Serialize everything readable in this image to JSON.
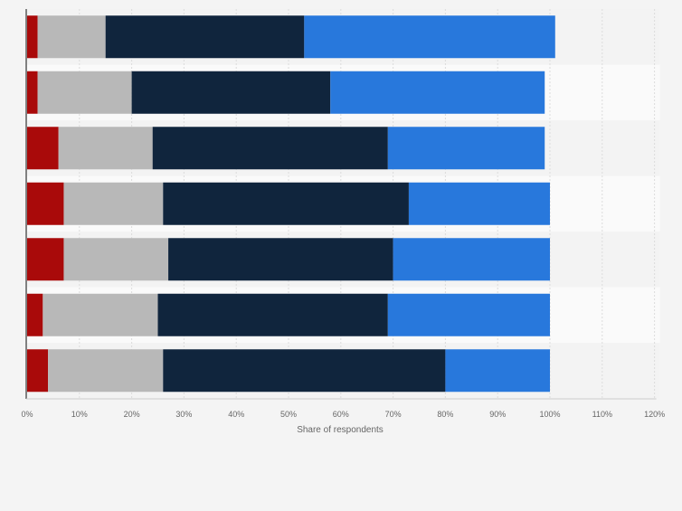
{
  "chart_data": {
    "type": "bar",
    "orientation": "horizontal",
    "stacked": true,
    "title": "",
    "xlabel": "Share of respondents",
    "ylabel": "",
    "xlim": [
      0,
      120
    ],
    "x_ticks": [
      "0%",
      "10%",
      "20%",
      "30%",
      "40%",
      "50%",
      "60%",
      "70%",
      "80%",
      "90%",
      "100%",
      "110%",
      "120%"
    ],
    "categories": [
      "",
      "",
      "",
      "",
      "",
      "",
      ""
    ],
    "series": [
      {
        "name": "",
        "color": "#a90a0a",
        "values": [
          2,
          2,
          6,
          7,
          7,
          3,
          4
        ]
      },
      {
        "name": "",
        "color": "#b8b8b8",
        "values": [
          13,
          18,
          18,
          19,
          20,
          22,
          22
        ]
      },
      {
        "name": "",
        "color": "#10253d",
        "values": [
          38,
          38,
          45,
          47,
          43,
          44,
          54
        ]
      },
      {
        "name": "",
        "color": "#2878dc",
        "values": [
          48,
          41,
          30,
          27,
          30,
          31,
          20
        ]
      }
    ],
    "grid": true,
    "legend": "none"
  }
}
